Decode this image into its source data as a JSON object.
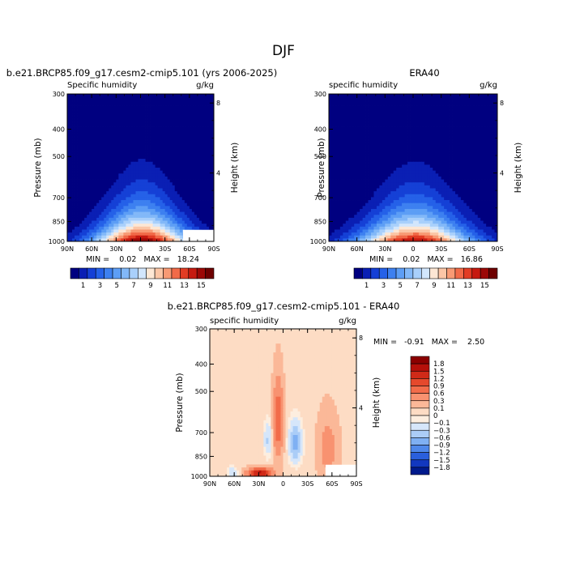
{
  "figure": {
    "title": "DJF"
  },
  "chart_data": [
    {
      "type": "heatmap",
      "title": "b.e21.BRCP85.f09_g17.cesm2-cmip5.101 (yrs 2006-2025)",
      "left_subtitle": "Specific humidity",
      "units": "g/kg",
      "xlabel": "",
      "ylabel": "Pressure (mb)",
      "y2label": "Height (km)",
      "x_ticks": [
        "90N",
        "60N",
        "30N",
        "0",
        "30S",
        "60S",
        "90S"
      ],
      "y_ticks": [
        "300",
        "400",
        "500",
        "700",
        "850",
        "1000"
      ],
      "y_tick_values": [
        300,
        400,
        500,
        700,
        850,
        1000
      ],
      "y2_ticks": [
        "8",
        "4"
      ],
      "y2_tick_values": [
        8,
        4
      ],
      "xlim": [
        90,
        -90
      ],
      "ylim": [
        1000,
        300
      ],
      "log_y": true,
      "stats": "MIN =    0.02   MAX =   18.24",
      "min": 0.02,
      "max": 18.24,
      "peak_value": 16.5,
      "missing_region": "lower-right"
    },
    {
      "type": "heatmap",
      "title": "ERA40",
      "left_subtitle": "specific humidity",
      "units": "g/kg",
      "xlabel": "",
      "ylabel": "Pressure (mb)",
      "y2label": "Height (km)",
      "x_ticks": [
        "90N",
        "60N",
        "30N",
        "0",
        "30S",
        "60S",
        "90S"
      ],
      "y_ticks": [
        "300",
        "400",
        "500",
        "700",
        "850",
        "1000"
      ],
      "y_tick_values": [
        300,
        400,
        500,
        700,
        850,
        1000
      ],
      "y2_ticks": [
        "8",
        "4"
      ],
      "y2_tick_values": [
        8,
        4
      ],
      "xlim": [
        90,
        -90
      ],
      "ylim": [
        1000,
        300
      ],
      "log_y": true,
      "stats": "MIN =    0.02   MAX =   16.86",
      "min": 0.02,
      "max": 16.86,
      "peak_value": 15.5
    },
    {
      "type": "heatmap",
      "title": "b.e21.BRCP85.f09_g17.cesm2-cmip5.101 - ERA40",
      "left_subtitle": "specific humidity",
      "units": "g/kg",
      "xlabel": "",
      "ylabel": "Pressure (mb)",
      "y2label": "Height (km)",
      "x_ticks": [
        "90N",
        "60N",
        "30N",
        "0",
        "30S",
        "60S",
        "90S"
      ],
      "y_ticks": [
        "300",
        "400",
        "500",
        "700",
        "850",
        "1000"
      ],
      "y_tick_values": [
        300,
        400,
        500,
        700,
        850,
        1000
      ],
      "y2_ticks": [
        "8",
        "4"
      ],
      "y2_tick_values": [
        8,
        4
      ],
      "xlim": [
        90,
        -90
      ],
      "ylim": [
        1000,
        300
      ],
      "log_y": true,
      "stats": "MIN =   -0.91   MAX =    2.50",
      "min": -0.91,
      "max": 2.5,
      "missing_region": "lower-right"
    }
  ],
  "colorbar_absolute": {
    "labels": [
      "1",
      "3",
      "5",
      "7",
      "9",
      "11",
      "13",
      "15"
    ],
    "colors": [
      "#000080",
      "#0a1fb4",
      "#1540d6",
      "#2561e8",
      "#3d80f0",
      "#5d9ef5",
      "#82b8f8",
      "#a9d0fb",
      "#d2e6fc",
      "#fde7d4",
      "#fbc6a6",
      "#f89a74",
      "#f16a48",
      "#e23c24",
      "#c61a10",
      "#9c0806",
      "#6e0000"
    ]
  },
  "colorbar_difference": {
    "labels": [
      "1.8",
      "1.5",
      "1.2",
      "0.9",
      "0.6",
      "0.3",
      "0.1",
      "0",
      "−0.1",
      "−0.3",
      "−0.6",
      "−0.9",
      "−1.2",
      "−1.5",
      "−1.8"
    ],
    "colors": [
      "#8b0000",
      "#b5100a",
      "#d02a18",
      "#e5492c",
      "#f26c4a",
      "#f89270",
      "#fbb898",
      "#fddcc4",
      "#fdeedf",
      "#d6e6fa",
      "#abcdf7",
      "#7fb0f3",
      "#4f88ea",
      "#2a5fdc",
      "#1238bf",
      "#001a8c"
    ]
  }
}
